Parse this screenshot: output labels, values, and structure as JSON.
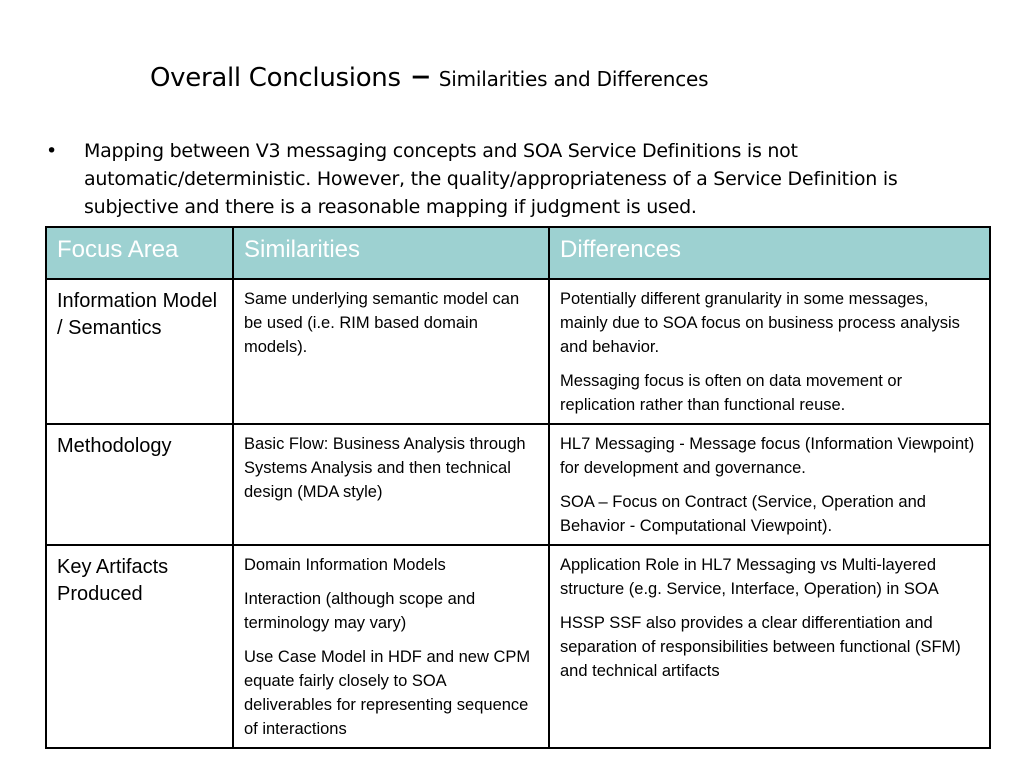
{
  "title": {
    "main": "Overall Conclusions",
    "dash": "–",
    "sub": "Similarities and Differences"
  },
  "bullet": {
    "mark": "•",
    "text": "Mapping between V3 messaging concepts and SOA Service Definitions is not automatic/deterministic. However, the quality/appropriateness of a Service Definition is subjective and there is a reasonable mapping if judgment is used."
  },
  "table": {
    "headers": [
      "Focus Area",
      "Similarities",
      "Differences"
    ],
    "header_color": "#9dd1d1",
    "rows": [
      {
        "focus": "Information Model / Semantics",
        "similarities": [
          "Same underlying semantic model can be used (i.e. RIM based domain models)."
        ],
        "differences": [
          "Potentially different granularity in some messages, mainly due to SOA focus on business process analysis and behavior.",
          "Messaging focus is often on data movement or replication rather than functional reuse."
        ]
      },
      {
        "focus": "Methodology",
        "similarities": [
          "Basic Flow: Business Analysis through Systems Analysis and then technical design (MDA style)"
        ],
        "differences": [
          "HL7 Messaging - Message focus (Information Viewpoint) for development and governance.",
          "SOA – Focus on Contract (Service, Operation and Behavior - Computational Viewpoint)."
        ]
      },
      {
        "focus": "Key Artifacts Produced",
        "similarities": [
          "Domain Information Models",
          "Interaction (although scope and terminology may vary)",
          "Use Case Model in HDF and new CPM equate fairly closely to SOA deliverables for representing sequence of interactions"
        ],
        "differences": [
          "Application Role in HL7 Messaging vs Multi-layered structure (e.g. Service, Interface, Operation) in SOA",
          "HSSP SSF also provides a clear differentiation and separation of responsibilities between functional (SFM)  and technical artifacts"
        ]
      }
    ]
  }
}
